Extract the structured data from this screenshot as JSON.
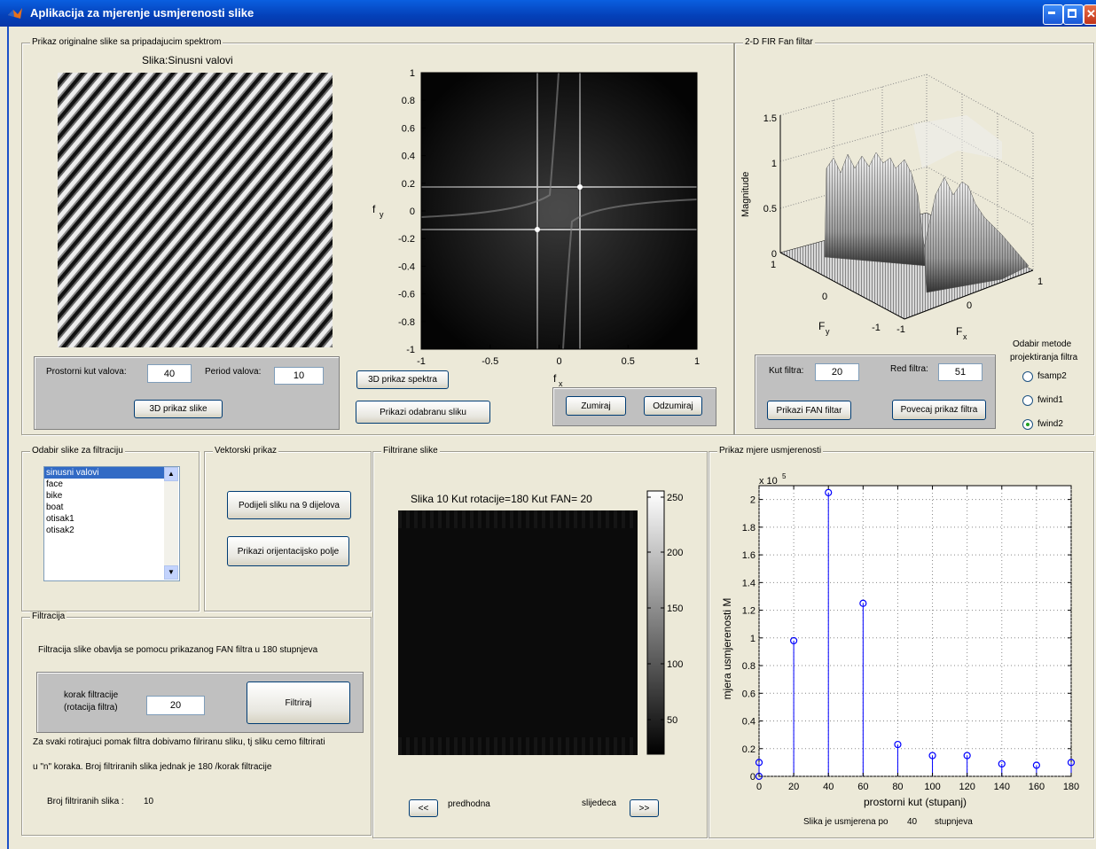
{
  "window": {
    "title": "Aplikacija za mjerenje usmjerenosti slike"
  },
  "panels": {
    "original": "Prikaz originalne slike sa pripadajucim spektrom",
    "fan_filter": "2-D FIR Fan filtar",
    "select_image": "Odabir slike za filtraciju",
    "vector": "Vektorski prikaz",
    "filtered": "Filtrirane slike",
    "measure": "Prikaz mjere usmjerenosti",
    "filtration": "Filtracija"
  },
  "original": {
    "image_title": "Slika:Sinusni valovi",
    "angle_label": "Prostorni kut valova:",
    "angle_value": "40",
    "period_label": "Period valova:",
    "period_value": "10",
    "btn_3d_image": "3D prikaz slike",
    "btn_3d_spectrum": "3D prikaz spektra",
    "btn_show_selected": "Prikazi odabranu sliku",
    "btn_zoom": "Zumiraj",
    "btn_unzoom": "Odzumiraj"
  },
  "spectrum": {
    "yticks": [
      "1",
      "0.8",
      "0.6",
      "0.4",
      "0.2",
      "0",
      "-0.2",
      "-0.4",
      "-0.6",
      "-0.8",
      "-1"
    ],
    "xticks": [
      "-1",
      "-0.5",
      "0",
      "0.5",
      "1"
    ],
    "xlabel": "f",
    "xsub": "x",
    "ylabel": "f",
    "ysub": "y"
  },
  "fan": {
    "zticks": [
      "1.5",
      "1",
      "0.5",
      "0"
    ],
    "zlabel": "Magnitude",
    "fy_ticks": [
      "1",
      "0",
      "-1"
    ],
    "fx_ticks": [
      "-1",
      "0",
      "1"
    ],
    "fy_label": "F",
    "fy_sub": "y",
    "fx_label": "F",
    "fx_sub": "x",
    "kut_label": "Kut filtra:",
    "kut_value": "20",
    "red_label": "Red filtra:",
    "red_value": "51",
    "btn_show_fan": "Prikazi FAN filtar",
    "btn_enlarge": "Povecaj prikaz filtra",
    "method_title_1": "Odabir metode",
    "method_title_2": "projektiranja filtra",
    "methods": [
      {
        "label": "fsamp2",
        "selected": false
      },
      {
        "label": "fwind1",
        "selected": false
      },
      {
        "label": "fwind2",
        "selected": true
      }
    ]
  },
  "image_list": {
    "items": [
      "sinusni valovi",
      "face",
      "bike",
      "boat",
      "otisak1",
      "otisak2"
    ],
    "selected_index": 0
  },
  "vector": {
    "btn_split": "Podijeli sliku na 9 dijelova",
    "btn_orient": "Prikazi orijentacijsko polje"
  },
  "filtered": {
    "title": "Slika 10   Kut rotacije=180   Kut FAN= 20",
    "colorbar_ticks": [
      "250",
      "200",
      "150",
      "100",
      "50"
    ],
    "btn_prev": "<<",
    "prev_label": "predhodna",
    "next_label": "slijedeca",
    "btn_next": ">>"
  },
  "filtration": {
    "description": "Filtracija slike obavlja se pomocu prikazanog FAN filtra u 180 stupnjeva",
    "step_label_1": "korak filtracije",
    "step_label_2": "(rotacija filtra)",
    "step_value": "20",
    "btn_filter": "Filtriraj",
    "note_1": "Za svaki rotirajuci pomak filtra dobivamo filriranu sliku, tj sliku cemo filtrirati",
    "note_2": "u \"n\" koraka. Broj filtriranih slika jednak je 180 /korak filtracije",
    "count_label": "Broj filtriranih slika :",
    "count_value": "10"
  },
  "measure": {
    "multiplier": "x 10",
    "multiplier_exp": "5",
    "result_prefix": "Slika je usmjerena po",
    "result_value": "40",
    "result_suffix": "stupnjeva"
  },
  "chart_data": {
    "type": "stem",
    "x": [
      0,
      20,
      40,
      60,
      80,
      100,
      120,
      140,
      160,
      180
    ],
    "values": [
      0.1,
      0.98,
      2.05,
      1.25,
      0.23,
      0.15,
      0.15,
      0.09,
      0.08,
      0.1
    ],
    "extra_point": {
      "x": 0,
      "y": 0
    },
    "xlabel": "prostorni kut (stupanj)",
    "ylabel": "mjera usmjerenosti M",
    "xticks": [
      "0",
      "20",
      "40",
      "60",
      "80",
      "100",
      "120",
      "140",
      "160",
      "180"
    ],
    "yticks": [
      "0",
      "0.2",
      "0.4",
      "0.6",
      "0.8",
      "1",
      "1.2",
      "1.4",
      "1.6",
      "1.8",
      "2"
    ],
    "xlim": [
      0,
      180
    ],
    "ylim": [
      0,
      2.1
    ],
    "grid": true,
    "color": "#0000FF"
  }
}
